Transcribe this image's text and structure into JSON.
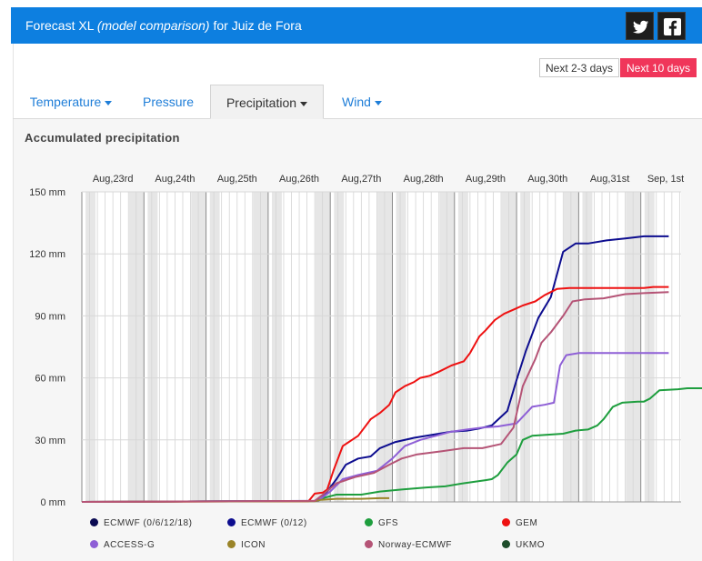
{
  "header": {
    "title_main": "Forecast XL ",
    "title_sub": "(model comparison)",
    "title_loc": " for Juiz de Fora",
    "bg": "#0d7fe0",
    "social": [
      {
        "name": "twitter-icon"
      },
      {
        "name": "facebook-icon"
      }
    ]
  },
  "range": {
    "short_label": "Next 2-3 days",
    "long_label": "Next 10 days",
    "active": "long",
    "active_color": "#f0365a"
  },
  "tabs": [
    {
      "label": "Temperature",
      "dropdown": true,
      "active": false
    },
    {
      "label": "Pressure",
      "dropdown": false,
      "active": false
    },
    {
      "label": "Precipitation",
      "dropdown": true,
      "active": true
    },
    {
      "label": "Wind",
      "dropdown": true,
      "active": false
    }
  ],
  "chart_data": {
    "type": "line",
    "title": "Accumulated precipitation",
    "ylim": [
      0,
      150
    ],
    "yticks": [
      "0 mm",
      "30 mm",
      "60 mm",
      "90 mm",
      "120 mm",
      "150 mm"
    ],
    "ytick_values": [
      0,
      30,
      60,
      90,
      120,
      150
    ],
    "x_unit": "days from Aug 23 00:00",
    "xlim": [
      0,
      9.7
    ],
    "date_labels": [
      {
        "label": "Aug,23rd",
        "day": 0.5
      },
      {
        "label": "Aug,24th",
        "day": 1.5
      },
      {
        "label": "Aug,25th",
        "day": 2.5
      },
      {
        "label": "Aug,26th",
        "day": 3.5
      },
      {
        "label": "Aug,27th",
        "day": 4.5
      },
      {
        "label": "Aug,28th",
        "day": 5.5
      },
      {
        "label": "Aug,29th",
        "day": 6.5
      },
      {
        "label": "Aug,30th",
        "day": 7.5
      },
      {
        "label": "Aug,31st",
        "day": 8.5
      },
      {
        "label": "Sep, 1st",
        "day": 9.4
      }
    ],
    "grid": true,
    "legend_position": "bottom",
    "series": [
      {
        "name": "ECMWF (0/6/12/18)",
        "color": "#0b0b52",
        "points": []
      },
      {
        "name": "ECMWF (0/12)",
        "color": "#0d0d8f",
        "points": [
          [
            0,
            0
          ],
          [
            3.75,
            0.5
          ],
          [
            3.85,
            1.5
          ],
          [
            3.95,
            5
          ],
          [
            4.1,
            11
          ],
          [
            4.25,
            18
          ],
          [
            4.45,
            21
          ],
          [
            4.65,
            22
          ],
          [
            4.8,
            26
          ],
          [
            5.05,
            29
          ],
          [
            5.35,
            31
          ],
          [
            5.65,
            32.5
          ],
          [
            5.95,
            34
          ],
          [
            6.2,
            34.5
          ],
          [
            6.4,
            35.5
          ],
          [
            6.6,
            37
          ],
          [
            6.85,
            44
          ],
          [
            7,
            59
          ],
          [
            7.15,
            73
          ],
          [
            7.35,
            89
          ],
          [
            7.55,
            99
          ],
          [
            7.75,
            121
          ],
          [
            7.95,
            125
          ],
          [
            8.15,
            125
          ],
          [
            8.45,
            126.5
          ],
          [
            8.75,
            127.5
          ],
          [
            9.05,
            128.5
          ],
          [
            9.45,
            128.5
          ]
        ]
      },
      {
        "name": "GFS",
        "color": "#1e9e3e",
        "points": [
          [
            0,
            0
          ],
          [
            3.8,
            0.5
          ],
          [
            3.9,
            2
          ],
          [
            4.1,
            3.5
          ],
          [
            4.5,
            3.5
          ],
          [
            4.8,
            5
          ],
          [
            5.15,
            6
          ],
          [
            5.55,
            7
          ],
          [
            5.85,
            7.5
          ],
          [
            6.15,
            9
          ],
          [
            6.5,
            10.5
          ],
          [
            6.6,
            11
          ],
          [
            6.7,
            13
          ],
          [
            6.85,
            19
          ],
          [
            7,
            23
          ],
          [
            7.1,
            30
          ],
          [
            7.25,
            32
          ],
          [
            7.5,
            32.5
          ],
          [
            7.75,
            33
          ],
          [
            7.95,
            34.5
          ],
          [
            8.15,
            35
          ],
          [
            8.3,
            37
          ],
          [
            8.4,
            40
          ],
          [
            8.55,
            46
          ],
          [
            8.7,
            48
          ],
          [
            8.95,
            48.5
          ],
          [
            9.05,
            48.5
          ],
          [
            9.15,
            50
          ],
          [
            9.3,
            54
          ],
          [
            9.6,
            54.5
          ],
          [
            9.75,
            55
          ],
          [
            10.0,
            55
          ]
        ]
      },
      {
        "name": "GEM",
        "color": "#ee1111",
        "points": [
          [
            0,
            0
          ],
          [
            3.65,
            0.3
          ],
          [
            3.75,
            4
          ],
          [
            3.88,
            4.5
          ],
          [
            3.95,
            6
          ],
          [
            4.05,
            15
          ],
          [
            4.2,
            27
          ],
          [
            4.35,
            30
          ],
          [
            4.45,
            32
          ],
          [
            4.55,
            36
          ],
          [
            4.65,
            40
          ],
          [
            4.8,
            43
          ],
          [
            4.95,
            47
          ],
          [
            5.05,
            53
          ],
          [
            5.2,
            56
          ],
          [
            5.35,
            58
          ],
          [
            5.45,
            60
          ],
          [
            5.6,
            61
          ],
          [
            5.75,
            63
          ],
          [
            5.95,
            66
          ],
          [
            6.15,
            68
          ],
          [
            6.25,
            72
          ],
          [
            6.4,
            80
          ],
          [
            6.5,
            83
          ],
          [
            6.65,
            88
          ],
          [
            6.8,
            91
          ],
          [
            6.95,
            93
          ],
          [
            7.1,
            95
          ],
          [
            7.3,
            97
          ],
          [
            7.45,
            100
          ],
          [
            7.65,
            103
          ],
          [
            7.85,
            103.5
          ],
          [
            8.15,
            103.5
          ],
          [
            8.45,
            103.5
          ],
          [
            8.75,
            103.5
          ],
          [
            9.05,
            103.5
          ],
          [
            9.2,
            104
          ],
          [
            9.45,
            104
          ]
        ]
      },
      {
        "name": "ACCESS-G",
        "color": "#8e5fd6",
        "points": [
          [
            0,
            0
          ],
          [
            3.8,
            0.5
          ],
          [
            4.0,
            5
          ],
          [
            4.2,
            11
          ],
          [
            4.45,
            13
          ],
          [
            4.75,
            15
          ],
          [
            5.0,
            21
          ],
          [
            5.2,
            27
          ],
          [
            5.45,
            30
          ],
          [
            5.7,
            32
          ],
          [
            5.95,
            34
          ],
          [
            6.2,
            35
          ],
          [
            6.45,
            36
          ],
          [
            6.7,
            36.5
          ],
          [
            7.0,
            38
          ],
          [
            7.25,
            46
          ],
          [
            7.45,
            47
          ],
          [
            7.6,
            48
          ],
          [
            7.7,
            66
          ],
          [
            7.8,
            71
          ],
          [
            8.0,
            72
          ],
          [
            8.35,
            72
          ],
          [
            8.75,
            72
          ],
          [
            9.05,
            72
          ],
          [
            9.45,
            72
          ]
        ]
      },
      {
        "name": "ICON",
        "color": "#9a8428",
        "points": [
          [
            0,
            0
          ],
          [
            3.75,
            0.3
          ],
          [
            3.85,
            1
          ],
          [
            4.1,
            1.5
          ],
          [
            4.5,
            1.5
          ],
          [
            4.8,
            1.8
          ],
          [
            4.95,
            1.8
          ]
        ]
      },
      {
        "name": "Norway-ECMWF",
        "color": "#b55476",
        "points": [
          [
            0,
            0
          ],
          [
            3.75,
            0.5
          ],
          [
            3.9,
            4
          ],
          [
            4.1,
            9
          ],
          [
            4.4,
            12
          ],
          [
            4.7,
            14
          ],
          [
            4.95,
            18
          ],
          [
            5.15,
            21
          ],
          [
            5.4,
            23
          ],
          [
            5.8,
            24.5
          ],
          [
            6.15,
            26
          ],
          [
            6.45,
            26
          ],
          [
            6.75,
            28
          ],
          [
            6.95,
            36
          ],
          [
            7.1,
            56
          ],
          [
            7.3,
            69
          ],
          [
            7.4,
            77
          ],
          [
            7.55,
            82
          ],
          [
            7.75,
            90
          ],
          [
            7.9,
            97
          ],
          [
            8.1,
            98
          ],
          [
            8.4,
            98.5
          ],
          [
            8.75,
            100.5
          ],
          [
            9.05,
            101
          ],
          [
            9.45,
            101.5
          ]
        ]
      },
      {
        "name": "UKMO",
        "color": "#1e4d2b",
        "points": []
      }
    ]
  }
}
